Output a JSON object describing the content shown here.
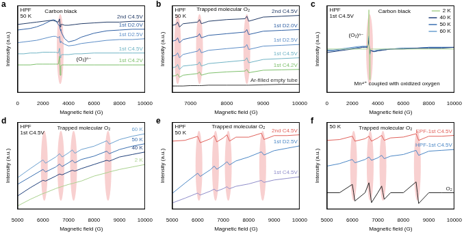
{
  "chart_data": [
    {
      "panel": "a",
      "type": "line",
      "title": [
        "HPF",
        "50 K"
      ],
      "x_label": "Magnetic field (G)",
      "y_label": "Intensity (a.u.)",
      "tick_labels": "x",
      "grid": false,
      "xlim": [
        0,
        10000
      ],
      "xticks": [
        0,
        2000,
        4000,
        6000,
        8000,
        10000
      ],
      "ylim": [
        0,
        11
      ],
      "x": [
        0,
        500,
        1000,
        1500,
        2000,
        2500,
        2800,
        3000,
        3200,
        3300,
        3350,
        3400,
        3500,
        3700,
        4000,
        4500,
        5000,
        6000,
        7000,
        8000,
        9000,
        10000
      ],
      "series": [
        {
          "name": "2nd C4.5V",
          "color": "#1f3864",
          "values": [
            8.6,
            8.7,
            8.8,
            8.9,
            9.0,
            9.1,
            9.1,
            9.0,
            8.9,
            9.3,
            8.3,
            8.6,
            8.6,
            8.5,
            8.5,
            8.6,
            8.7,
            8.8,
            8.9,
            8.9,
            9.0,
            9.0
          ]
        },
        {
          "name": "1st D2.0V",
          "color": "#2e5fa3",
          "values": [
            7.9,
            8.0,
            8.1,
            8.3,
            8.6,
            9.0,
            9.2,
            9.1,
            8.6,
            8.4,
            8.0,
            7.8,
            7.4,
            6.8,
            6.4,
            6.6,
            7.0,
            7.5,
            7.8,
            7.9,
            8.0,
            8.0
          ]
        },
        {
          "name": "1st D2.5V",
          "color": "#5b8cc6",
          "values": [
            6.3,
            6.4,
            6.5,
            6.6,
            6.8,
            7.0,
            7.1,
            7.1,
            6.9,
            7.1,
            6.3,
            6.5,
            6.3,
            6.1,
            5.9,
            6.0,
            6.2,
            6.4,
            6.6,
            6.7,
            6.7,
            6.8
          ]
        },
        {
          "name": "1st C4.5V",
          "color": "#6fb3c4",
          "values": [
            4.9,
            4.9,
            5.0,
            5.0,
            5.1,
            5.1,
            5.1,
            5.1,
            5.0,
            5.6,
            4.4,
            4.7,
            4.8,
            4.8,
            4.8,
            4.9,
            4.9,
            5.0,
            5.0,
            5.0,
            5.0,
            5.0
          ]
        },
        {
          "name": "1st C4.2V",
          "color": "#7cbf6a",
          "values": [
            3.5,
            3.5,
            3.5,
            3.6,
            3.6,
            3.6,
            3.6,
            3.6,
            3.6,
            4.6,
            2.2,
            3.4,
            3.5,
            3.5,
            3.5,
            3.5,
            3.5,
            3.5,
            3.5,
            3.5,
            3.5,
            3.5
          ]
        }
      ],
      "highlights": [
        3350
      ],
      "annotations": [
        {
          "text": "Carbon black",
          "x": 3400,
          "y": 10.2
        },
        {
          "text": "(O₂)ⁿ⁻",
          "x": 5200,
          "y": 4.2
        }
      ]
    },
    {
      "panel": "b",
      "type": "line",
      "title": [
        "HPF",
        "50 K"
      ],
      "x_label": "Magnetic field (G)",
      "y_label": "Intensity (a.u.)",
      "tick_labels": "x",
      "grid": false,
      "xlim": [
        6500,
        10000
      ],
      "xticks": [
        7000,
        8000,
        9000,
        10000
      ],
      "ylim": [
        0,
        10.5
      ],
      "x": [
        6500,
        6600,
        6650,
        6700,
        6800,
        7000,
        7200,
        7250,
        7300,
        7500,
        8000,
        8500,
        8550,
        8600,
        9000,
        9500,
        10000
      ],
      "series": [
        {
          "name": "2nd C4.5V",
          "color": "#1f3864",
          "values": [
            8.1,
            8.2,
            8.5,
            7.9,
            8.3,
            8.4,
            8.5,
            8.8,
            8.3,
            8.6,
            8.8,
            8.9,
            9.2,
            8.6,
            9.1,
            9.2,
            9.3
          ]
        },
        {
          "name": "1st D2.0V",
          "color": "#2e5fa3",
          "values": [
            6.2,
            6.3,
            6.6,
            6.0,
            6.4,
            6.6,
            6.8,
            7.1,
            6.6,
            6.9,
            7.1,
            7.3,
            7.6,
            7.0,
            7.4,
            7.5,
            7.6
          ]
        },
        {
          "name": "1st D2.5V",
          "color": "#5b8cc6",
          "values": [
            4.4,
            4.5,
            4.8,
            4.2,
            4.6,
            4.8,
            5.0,
            5.3,
            4.8,
            5.1,
            5.3,
            5.5,
            5.8,
            5.2,
            5.6,
            5.7,
            5.8
          ]
        },
        {
          "name": "1st C4.5V",
          "color": "#6fb3c4",
          "values": [
            3.0,
            3.1,
            3.4,
            2.8,
            3.2,
            3.3,
            3.4,
            3.7,
            3.2,
            3.5,
            3.7,
            3.9,
            4.2,
            3.6,
            4.0,
            4.1,
            4.2
          ]
        },
        {
          "name": "1st C4.2V",
          "color": "#7cbf6a",
          "values": [
            2.0,
            2.05,
            2.25,
            1.85,
            2.1,
            2.2,
            2.3,
            2.5,
            2.1,
            2.35,
            2.5,
            2.6,
            2.8,
            2.4,
            2.7,
            2.75,
            2.8
          ]
        },
        {
          "name": "Ar-filled empty tube",
          "color": "#333333",
          "values": [
            0.8,
            0.8,
            0.8,
            0.8,
            0.8,
            0.85,
            0.85,
            0.85,
            0.85,
            0.9,
            0.9,
            0.9,
            0.9,
            0.9,
            0.95,
            1.0,
            1.0
          ]
        }
      ],
      "highlights": [
        6650,
        7250,
        8550
      ],
      "annotations": [
        {
          "text": "Trapped molecular O₂",
          "x": 7900,
          "y": 10.0
        }
      ]
    },
    {
      "panel": "c",
      "type": "line",
      "title": [
        "HPF",
        "1st C4.5V"
      ],
      "x_label": "Magnetic field (G)",
      "y_label": "Intensity (a.u.)",
      "tick_labels": "x",
      "grid": false,
      "legend": "top right",
      "xlim": [
        0,
        10000
      ],
      "xticks": [
        0,
        2000,
        4000,
        6000,
        8000,
        10000
      ],
      "ylim": [
        0,
        10
      ],
      "x": [
        0,
        500,
        1000,
        1500,
        2000,
        2500,
        2800,
        3000,
        3200,
        3300,
        3350,
        3400,
        3500,
        3700,
        4000,
        4500,
        5000,
        6000,
        7000,
        8000,
        9000,
        10000
      ],
      "series": [
        {
          "name": "2 K",
          "color": "#a9d18e",
          "values": [
            5.0,
            5.0,
            5.0,
            5.0,
            5.0,
            5.0,
            5.0,
            5.0,
            5.0,
            9.5,
            1.5,
            5.0,
            5.0,
            5.0,
            5.0,
            5.0,
            5.0,
            5.0,
            5.0,
            5.0,
            5.0,
            5.0
          ]
        },
        {
          "name": "40 K",
          "color": "#1f3f7a",
          "values": [
            4.6,
            4.7,
            4.8,
            4.9,
            5.0,
            5.1,
            5.2,
            5.2,
            5.2,
            6.0,
            4.6,
            4.9,
            4.8,
            4.7,
            4.8,
            4.9,
            5.0,
            5.0,
            5.1,
            5.1,
            5.1,
            5.2
          ]
        },
        {
          "name": "50 K",
          "color": "#3a6fb0",
          "values": [
            4.8,
            4.8,
            4.9,
            5.0,
            5.1,
            5.2,
            5.3,
            5.3,
            5.3,
            6.3,
            4.5,
            4.9,
            4.8,
            4.7,
            4.8,
            4.9,
            5.0,
            5.1,
            5.1,
            5.2,
            5.2,
            5.2
          ]
        },
        {
          "name": "60 K",
          "color": "#6a9fcf",
          "values": [
            4.9,
            4.9,
            5.0,
            5.1,
            5.2,
            5.3,
            5.3,
            5.3,
            5.3,
            6.5,
            4.4,
            4.9,
            4.8,
            4.8,
            4.9,
            5.0,
            5.0,
            5.1,
            5.1,
            5.2,
            5.2,
            5.2
          ]
        }
      ],
      "highlights": [
        3350
      ],
      "annotations": [
        {
          "text": "Carbon black",
          "x": 5300,
          "y": 9.3
        },
        {
          "text": "(O₂)ⁿ⁻",
          "x": 2300,
          "y": 6.6
        },
        {
          "text": "Mn⁴⁺ coupled with oxidized oxygen",
          "x": 5500,
          "y": 1.0
        }
      ]
    },
    {
      "panel": "d",
      "type": "line",
      "title": [
        "HPF",
        "1st C4.5V"
      ],
      "x_label": "Magnetic field (G)",
      "y_label": "Intensity (a.u.)",
      "tick_labels": "x",
      "grid": false,
      "xlim": [
        5000,
        10000
      ],
      "xticks": [
        5000,
        6000,
        7000,
        8000,
        9000,
        10000
      ],
      "ylim": [
        0,
        10.5
      ],
      "x": [
        5000,
        5500,
        6000,
        6050,
        6100,
        6500,
        6650,
        6700,
        6750,
        7000,
        7150,
        7200,
        7250,
        7500,
        8000,
        8500,
        8550,
        8600,
        9000,
        9500,
        10000
      ],
      "series": [
        {
          "name": "60 K",
          "color": "#6a9fcf",
          "values": [
            3.8,
            4.9,
            5.95,
            5.75,
            5.55,
            6.3,
            6.7,
            6.5,
            6.3,
            6.8,
            7.15,
            6.95,
            6.75,
            7.2,
            7.6,
            8.25,
            8.05,
            7.85,
            8.4,
            8.8,
            9.1
          ]
        },
        {
          "name": "50 K",
          "color": "#3a6fb0",
          "values": [
            3.0,
            3.9,
            4.8,
            4.65,
            4.5,
            5.1,
            5.45,
            5.3,
            5.15,
            5.6,
            5.9,
            5.75,
            5.6,
            6.0,
            6.4,
            7.0,
            6.85,
            6.7,
            7.2,
            7.6,
            7.9
          ]
        },
        {
          "name": "40 K",
          "color": "#1f3f7a",
          "values": [
            1.6,
            2.6,
            3.5,
            3.45,
            3.4,
            4.0,
            4.25,
            4.2,
            4.15,
            4.5,
            4.7,
            4.65,
            4.6,
            4.9,
            5.4,
            5.9,
            5.85,
            5.8,
            6.3,
            6.6,
            6.9
          ]
        },
        {
          "name": "2 K",
          "color": "#a9d18e",
          "values": [
            0.4,
            1.2,
            1.9,
            1.95,
            2.0,
            2.5,
            2.65,
            2.7,
            2.75,
            3.0,
            3.1,
            3.15,
            3.2,
            3.4,
            4.0,
            4.4,
            4.45,
            4.5,
            4.8,
            5.1,
            5.4
          ]
        }
      ],
      "highlights": [
        6050,
        6700,
        7200,
        8550
      ],
      "annotations": [
        {
          "text": "Trapped molecular O₂",
          "x": 7600,
          "y": 9.8
        }
      ]
    },
    {
      "panel": "e",
      "type": "line",
      "title": [
        "HPF",
        "50 K"
      ],
      "x_label": "Magnetic field (G)",
      "y_label": "Intensity (a.u.)",
      "tick_labels": "x",
      "grid": false,
      "xlim": [
        5000,
        10000
      ],
      "xticks": [
        5000,
        6000,
        7000,
        8000,
        9000,
        10000
      ],
      "ylim": [
        0,
        11
      ],
      "x": [
        5000,
        5500,
        6000,
        6050,
        6100,
        6500,
        6650,
        6700,
        6750,
        7000,
        7150,
        7200,
        7250,
        7500,
        8000,
        8500,
        8550,
        8600,
        9000,
        9500,
        10000
      ],
      "series": [
        {
          "name": "2nd C4.5V",
          "color": "#e0605a",
          "values": [
            8.6,
            8.7,
            9.2,
            8.8,
            8.4,
            8.9,
            9.3,
            8.9,
            8.5,
            9.0,
            9.4,
            9.0,
            8.6,
            9.1,
            9.1,
            9.6,
            9.2,
            8.8,
            9.3,
            9.3,
            9.4
          ]
        },
        {
          "name": "1st D2.5V",
          "color": "#4a86c5",
          "values": [
            2.0,
            3.3,
            4.55,
            4.35,
            4.15,
            5.0,
            5.45,
            5.25,
            5.05,
            5.6,
            6.0,
            5.8,
            5.6,
            6.1,
            6.6,
            7.25,
            7.05,
            6.85,
            7.4,
            7.7,
            8.0
          ]
        },
        {
          "name": "1st C4.5V",
          "color": "#8e8cc9",
          "values": [
            0.8,
            1.4,
            2.05,
            1.9,
            1.8,
            2.3,
            2.55,
            2.4,
            2.3,
            2.6,
            2.85,
            2.7,
            2.6,
            2.9,
            3.2,
            3.65,
            3.5,
            3.4,
            3.7,
            3.9,
            4.1
          ]
        }
      ],
      "highlights": [
        6050,
        6700,
        7200,
        8550
      ],
      "annotations": [
        {
          "text": "Trapped molecular O₂",
          "x": 7600,
          "y": 10.4
        }
      ]
    },
    {
      "panel": "f",
      "type": "line",
      "title": [
        "50 K"
      ],
      "x_label": "Magnetic field (G)",
      "y_label": "Intensity (a.u.)",
      "tick_labels": "x",
      "grid": false,
      "xlim": [
        5000,
        10000
      ],
      "xticks": [
        5000,
        6000,
        7000,
        8000,
        9000,
        10000
      ],
      "ylim": [
        0,
        10.5
      ],
      "x": [
        5000,
        5500,
        6000,
        6050,
        6100,
        6500,
        6650,
        6700,
        6750,
        7000,
        7150,
        7200,
        7250,
        7500,
        8000,
        8500,
        8550,
        8600,
        9000,
        9500,
        10000
      ],
      "series": [
        {
          "name": "EPF-1st C4.5V",
          "color": "#e0605a",
          "values": [
            8.3,
            8.4,
            8.8,
            8.5,
            8.2,
            8.5,
            8.8,
            8.5,
            8.2,
            8.6,
            8.9,
            8.6,
            8.3,
            8.6,
            8.7,
            9.1,
            8.7,
            8.3,
            8.8,
            8.8,
            8.9
          ]
        },
        {
          "name": "HPF-1st C4.5V",
          "color": "#4a86c5",
          "values": [
            5.2,
            5.5,
            6.0,
            5.8,
            5.6,
            6.0,
            6.3,
            6.1,
            5.9,
            6.2,
            6.5,
            6.3,
            6.1,
            6.4,
            6.6,
            7.1,
            6.8,
            6.5,
            7.0,
            7.1,
            7.2
          ]
        },
        {
          "name": "O₂",
          "color": "#222222",
          "values": [
            2.0,
            2.0,
            3.0,
            2.0,
            1.0,
            2.0,
            3.2,
            2.0,
            0.8,
            2.0,
            2.8,
            2.0,
            1.2,
            2.0,
            2.0,
            3.3,
            2.0,
            0.7,
            2.0,
            2.0,
            2.0
          ]
        }
      ],
      "highlights": [
        6050,
        6700,
        7200,
        8550
      ],
      "annotations": [
        {
          "text": "Trapped molecular O₂",
          "x": 7300,
          "y": 9.8
        }
      ]
    }
  ]
}
